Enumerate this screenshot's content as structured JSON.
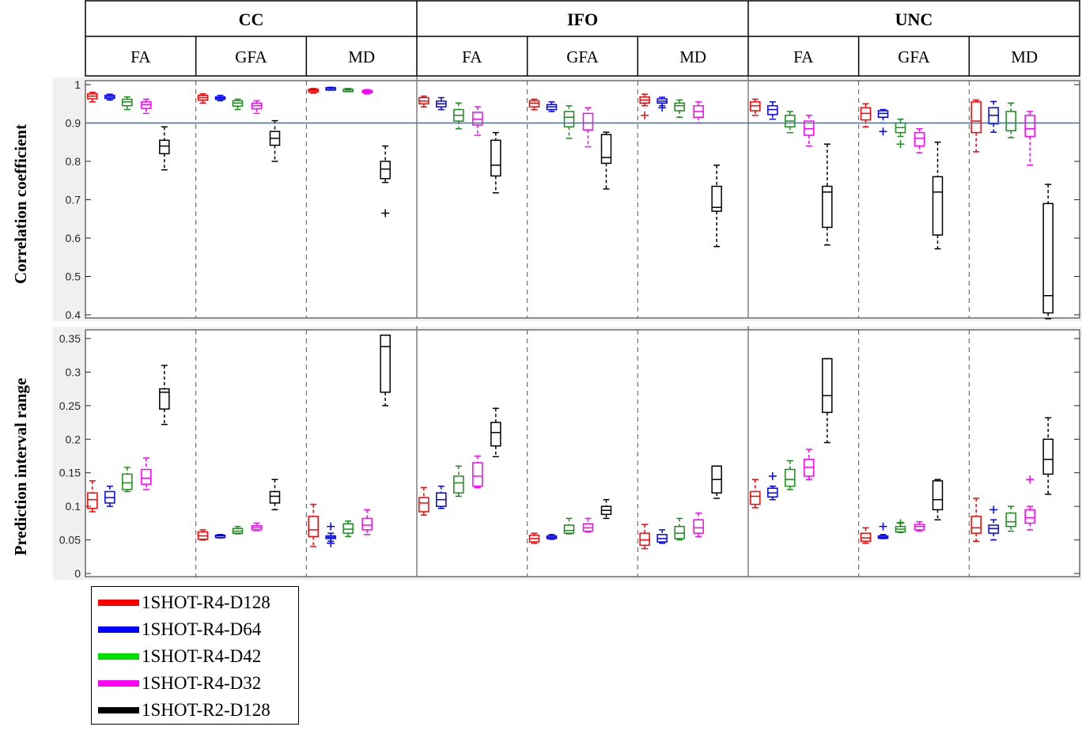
{
  "chart_data": {
    "type": "box",
    "groups": [
      "CC",
      "IFO",
      "UNC"
    ],
    "metrics": [
      "FA",
      "GFA",
      "MD"
    ],
    "series": [
      {
        "name": "1SHOT-R4-D128",
        "color": "#ff0000"
      },
      {
        "name": "1SHOT-R4-D64",
        "color": "#0000ff"
      },
      {
        "name": "1SHOT-R4-D42",
        "color": "#1a8c1a"
      },
      {
        "name": "1SHOT-R4-D32",
        "color": "#ff00ff"
      },
      {
        "name": "1SHOT-R2-D128",
        "color": "#000000"
      }
    ],
    "legend_colors": [
      "#ff0000",
      "#0000ff",
      "#00e000",
      "#ff00ff",
      "#000000"
    ],
    "reference_line": {
      "panel": "correlation",
      "y": 0.9,
      "color": "#2e75b6"
    },
    "panels": [
      {
        "ylabel": "Correlation coefficient",
        "ylim": [
          0.39,
          1.0
        ],
        "yticks": [
          "1",
          "0.9",
          "0.8",
          "0.7",
          "0.6",
          "0.5",
          "0.4"
        ],
        "ytick_values": [
          1,
          0.9,
          0.8,
          0.7,
          0.6,
          0.5,
          0.4
        ],
        "boxes": [
          [
            [
              0.955,
              0.963,
              0.97,
              0.976,
              0.98,
              []
            ],
            [
              0.96,
              0.964,
              0.968,
              0.972,
              0.975,
              []
            ],
            [
              0.935,
              0.945,
              0.955,
              0.962,
              0.968,
              []
            ],
            [
              0.925,
              0.938,
              0.948,
              0.955,
              0.962,
              []
            ],
            [
              0.778,
              0.82,
              0.84,
              0.855,
              0.89,
              []
            ]
          ],
          [
            [
              0.952,
              0.96,
              0.966,
              0.972,
              0.976,
              []
            ],
            [
              0.958,
              0.962,
              0.965,
              0.968,
              0.972,
              []
            ],
            [
              0.935,
              0.944,
              0.952,
              0.958,
              0.962,
              []
            ],
            [
              0.925,
              0.937,
              0.945,
              0.952,
              0.958,
              []
            ],
            [
              0.8,
              0.842,
              0.86,
              0.878,
              0.906,
              []
            ]
          ],
          [
            [
              0.978,
              0.981,
              0.985,
              0.988,
              0.99,
              []
            ],
            [
              0.986,
              0.988,
              0.99,
              0.992,
              0.993,
              []
            ],
            [
              0.983,
              0.985,
              0.987,
              0.988,
              0.99,
              []
            ],
            [
              0.976,
              0.979,
              0.982,
              0.985,
              0.987,
              []
            ],
            [
              0.745,
              0.755,
              0.78,
              0.8,
              0.84,
              [
                0.665
              ]
            ]
          ],
          [
            [
              0.942,
              0.95,
              0.957,
              0.966,
              0.97,
              []
            ],
            [
              0.935,
              0.942,
              0.95,
              0.957,
              0.966,
              []
            ],
            [
              0.885,
              0.905,
              0.92,
              0.935,
              0.952,
              []
            ],
            [
              0.868,
              0.895,
              0.91,
              0.928,
              0.942,
              []
            ],
            [
              0.718,
              0.762,
              0.79,
              0.855,
              0.875,
              []
            ]
          ],
          [
            [
              0.935,
              0.942,
              0.952,
              0.958,
              0.962,
              []
            ],
            [
              0.93,
              0.935,
              0.942,
              0.948,
              0.955,
              []
            ],
            [
              0.86,
              0.89,
              0.915,
              0.93,
              0.945,
              []
            ],
            [
              0.838,
              0.882,
              0.9,
              0.925,
              0.94,
              []
            ],
            [
              0.728,
              0.795,
              0.81,
              0.87,
              0.876,
              []
            ]
          ],
          [
            [
              0.945,
              0.952,
              0.96,
              0.968,
              0.975,
              [
                0.92
              ]
            ],
            [
              0.945,
              0.952,
              0.957,
              0.963,
              0.967,
              [
                0.94
              ]
            ],
            [
              0.915,
              0.932,
              0.945,
              0.952,
              0.96,
              []
            ],
            [
              0.9,
              0.915,
              0.93,
              0.945,
              0.955,
              []
            ],
            [
              0.578,
              0.67,
              0.68,
              0.735,
              0.79,
              []
            ]
          ],
          [
            [
              0.92,
              0.932,
              0.945,
              0.955,
              0.962,
              []
            ],
            [
              0.91,
              0.922,
              0.935,
              0.945,
              0.955,
              []
            ],
            [
              0.875,
              0.89,
              0.905,
              0.92,
              0.93,
              []
            ],
            [
              0.84,
              0.868,
              0.885,
              0.905,
              0.92,
              []
            ],
            [
              0.582,
              0.628,
              0.72,
              0.735,
              0.845,
              []
            ]
          ],
          [
            [
              0.89,
              0.908,
              0.925,
              0.94,
              0.95,
              []
            ],
            [
              0.9,
              0.915,
              0.925,
              0.932,
              0.935,
              [
                0.878
              ]
            ],
            [
              0.865,
              0.875,
              0.888,
              0.9,
              0.91,
              [
                0.845
              ]
            ],
            [
              0.822,
              0.84,
              0.86,
              0.875,
              0.885,
              []
            ],
            [
              0.572,
              0.608,
              0.72,
              0.76,
              0.85,
              []
            ]
          ],
          [
            [
              0.825,
              0.875,
              0.905,
              0.955,
              0.96,
              []
            ],
            [
              0.876,
              0.898,
              0.92,
              0.94,
              0.956,
              []
            ],
            [
              0.862,
              0.88,
              0.9,
              0.93,
              0.952,
              []
            ],
            [
              0.79,
              0.865,
              0.885,
              0.92,
              0.93,
              []
            ],
            [
              0.39,
              0.405,
              0.45,
              0.69,
              0.74,
              []
            ]
          ]
        ]
      },
      {
        "ylabel": "Prediction interval range",
        "ylim": [
          0,
          0.355
        ],
        "yticks": [
          "0.35",
          "0.3",
          "0.25",
          "0.2",
          "0.15",
          "0.1",
          "0.05",
          "0"
        ],
        "ytick_values": [
          0.35,
          0.3,
          0.25,
          0.2,
          0.15,
          0.1,
          0.05,
          0
        ],
        "boxes": [
          [
            [
              0.092,
              0.097,
              0.11,
              0.12,
              0.138,
              []
            ],
            [
              0.1,
              0.105,
              0.113,
              0.122,
              0.13,
              []
            ],
            [
              0.122,
              0.125,
              0.135,
              0.148,
              0.158,
              []
            ],
            [
              0.125,
              0.133,
              0.142,
              0.155,
              0.172,
              []
            ],
            [
              0.222,
              0.245,
              0.27,
              0.275,
              0.31,
              []
            ]
          ],
          [
            [
              0.05,
              0.051,
              0.056,
              0.062,
              0.065,
              []
            ],
            [
              0.053,
              0.054,
              0.056,
              0.057,
              0.058,
              []
            ],
            [
              0.059,
              0.06,
              0.063,
              0.067,
              0.07,
              []
            ],
            [
              0.064,
              0.065,
              0.068,
              0.071,
              0.075,
              []
            ],
            [
              0.095,
              0.105,
              0.115,
              0.122,
              0.14,
              []
            ]
          ],
          [
            [
              0.04,
              0.055,
              0.065,
              0.085,
              0.103,
              []
            ],
            [
              0.048,
              0.052,
              0.054,
              0.056,
              0.06,
              [
                0.07,
                0.045
              ]
            ],
            [
              0.055,
              0.06,
              0.066,
              0.074,
              0.078,
              []
            ],
            [
              0.058,
              0.065,
              0.072,
              0.082,
              0.095,
              []
            ],
            [
              0.25,
              0.27,
              0.338,
              0.355,
              0.355,
              []
            ]
          ],
          [
            [
              0.087,
              0.092,
              0.105,
              0.113,
              0.128,
              []
            ],
            [
              0.097,
              0.1,
              0.11,
              0.12,
              0.13,
              []
            ],
            [
              0.115,
              0.12,
              0.135,
              0.145,
              0.16,
              []
            ],
            [
              0.128,
              0.13,
              0.145,
              0.165,
              0.175,
              []
            ],
            [
              0.174,
              0.19,
              0.21,
              0.225,
              0.246,
              []
            ]
          ],
          [
            [
              0.045,
              0.047,
              0.052,
              0.057,
              0.06,
              []
            ],
            [
              0.051,
              0.052,
              0.054,
              0.056,
              0.058,
              []
            ],
            [
              0.059,
              0.06,
              0.064,
              0.072,
              0.082,
              []
            ],
            [
              0.062,
              0.063,
              0.068,
              0.074,
              0.082,
              []
            ],
            [
              0.082,
              0.088,
              0.094,
              0.1,
              0.11,
              []
            ]
          ],
          [
            [
              0.037,
              0.042,
              0.05,
              0.06,
              0.073,
              []
            ],
            [
              0.045,
              0.047,
              0.052,
              0.058,
              0.065,
              []
            ],
            [
              0.05,
              0.052,
              0.06,
              0.07,
              0.082,
              []
            ],
            [
              0.055,
              0.06,
              0.068,
              0.08,
              0.09,
              []
            ],
            [
              0.112,
              0.12,
              0.14,
              0.16,
              0.16,
              []
            ]
          ],
          [
            [
              0.098,
              0.103,
              0.115,
              0.122,
              0.14,
              []
            ],
            [
              0.11,
              0.114,
              0.12,
              0.127,
              0.13,
              [
                0.145
              ]
            ],
            [
              0.125,
              0.13,
              0.14,
              0.155,
              0.168,
              []
            ],
            [
              0.14,
              0.145,
              0.158,
              0.17,
              0.185,
              []
            ],
            [
              0.195,
              0.24,
              0.265,
              0.32,
              0.32,
              []
            ]
          ],
          [
            [
              0.045,
              0.048,
              0.053,
              0.06,
              0.068,
              []
            ],
            [
              0.052,
              0.053,
              0.054,
              0.056,
              0.058,
              [
                0.07
              ]
            ],
            [
              0.061,
              0.062,
              0.066,
              0.07,
              0.076,
              [
                0.075
              ]
            ],
            [
              0.063,
              0.065,
              0.07,
              0.073,
              0.077,
              []
            ],
            [
              0.08,
              0.095,
              0.11,
              0.138,
              0.14,
              []
            ]
          ],
          [
            [
              0.048,
              0.06,
              0.068,
              0.085,
              0.112,
              []
            ],
            [
              0.05,
              0.06,
              0.067,
              0.072,
              0.08,
              [
                0.095
              ]
            ],
            [
              0.063,
              0.07,
              0.077,
              0.09,
              0.1,
              []
            ],
            [
              0.065,
              0.075,
              0.083,
              0.095,
              0.1,
              [
                0.14
              ]
            ],
            [
              0.118,
              0.148,
              0.17,
              0.2,
              0.232,
              []
            ]
          ]
        ]
      }
    ]
  }
}
